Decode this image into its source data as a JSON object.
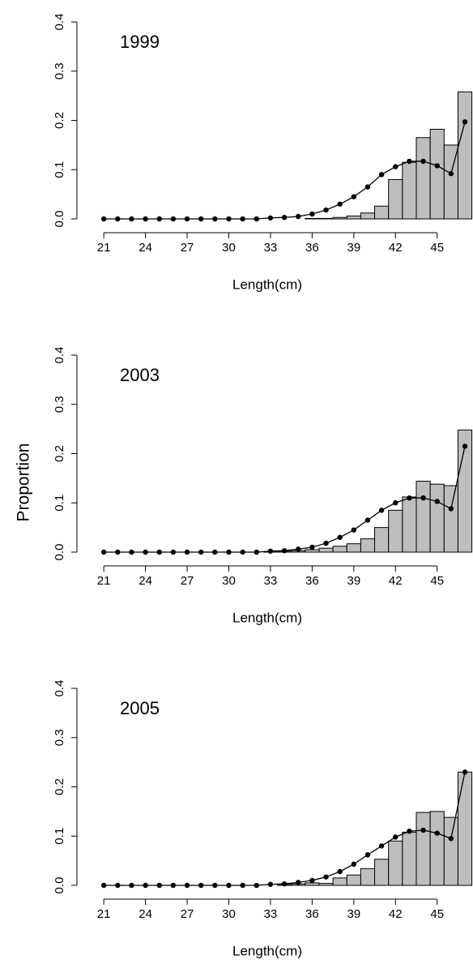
{
  "ylabel": "Proportion",
  "chart_data": [
    {
      "type": "combo",
      "title": "1999",
      "xlabel": "Length(cm)",
      "x": [
        21,
        22,
        23,
        24,
        25,
        26,
        27,
        28,
        29,
        30,
        31,
        32,
        33,
        34,
        35,
        36,
        37,
        38,
        39,
        40,
        41,
        42,
        43,
        44,
        45,
        46,
        47
      ],
      "series": [
        {
          "type": "bar",
          "color": "#bebebe",
          "values": [
            0,
            0,
            0,
            0,
            0,
            0,
            0,
            0,
            0,
            0,
            0,
            0,
            0,
            0,
            0,
            0.001,
            0.001,
            0.003,
            0.006,
            0.012,
            0.026,
            0.08,
            0.115,
            0.165,
            0.182,
            0.15,
            0.258
          ]
        },
        {
          "type": "line",
          "color": "#000000",
          "values": [
            0,
            0,
            0,
            0,
            0,
            0,
            0,
            0,
            0,
            0,
            0,
            0,
            0.002,
            0.003,
            0.005,
            0.01,
            0.018,
            0.03,
            0.045,
            0.065,
            0.09,
            0.106,
            0.117,
            0.117,
            0.108,
            0.092,
            0.197
          ]
        }
      ],
      "xlim": [
        20,
        47.5
      ],
      "xticks": [
        21,
        24,
        27,
        30,
        33,
        36,
        39,
        42,
        45
      ],
      "ylim": [
        0,
        0.4
      ],
      "yticks": [
        {
          "value": 0,
          "label": "0.0"
        },
        {
          "value": 0.1,
          "label": "0.1"
        },
        {
          "value": 0.2,
          "label": "0.2"
        },
        {
          "value": 0.3,
          "label": "0.3"
        },
        {
          "value": 0.4,
          "label": "0.4"
        }
      ]
    },
    {
      "type": "combo",
      "title": "2003",
      "xlabel": "Length(cm)",
      "x": [
        21,
        22,
        23,
        24,
        25,
        26,
        27,
        28,
        29,
        30,
        31,
        32,
        33,
        34,
        35,
        36,
        37,
        38,
        39,
        40,
        41,
        42,
        43,
        44,
        45,
        46,
        47
      ],
      "series": [
        {
          "type": "bar",
          "color": "#bebebe",
          "values": [
            0,
            0,
            0,
            0,
            0,
            0,
            0,
            0,
            0,
            0,
            0,
            0,
            0.001,
            0.002,
            0.003,
            0.005,
            0.008,
            0.012,
            0.017,
            0.027,
            0.05,
            0.085,
            0.112,
            0.144,
            0.138,
            0.135,
            0.248
          ]
        },
        {
          "type": "line",
          "color": "#000000",
          "values": [
            0,
            0,
            0,
            0,
            0,
            0,
            0,
            0,
            0,
            0,
            0,
            0,
            0.002,
            0.003,
            0.006,
            0.01,
            0.018,
            0.03,
            0.045,
            0.065,
            0.085,
            0.1,
            0.11,
            0.11,
            0.103,
            0.088,
            0.215
          ]
        }
      ],
      "xlim": [
        20,
        47.5
      ],
      "xticks": [
        21,
        24,
        27,
        30,
        33,
        36,
        39,
        42,
        45
      ],
      "ylim": [
        0,
        0.4
      ],
      "yticks": [
        {
          "value": 0,
          "label": "0.0"
        },
        {
          "value": 0.1,
          "label": "0.1"
        },
        {
          "value": 0.2,
          "label": "0.2"
        },
        {
          "value": 0.3,
          "label": "0.3"
        },
        {
          "value": 0.4,
          "label": "0.4"
        }
      ]
    },
    {
      "type": "combo",
      "title": "2005",
      "xlabel": "Length(cm)",
      "x": [
        21,
        22,
        23,
        24,
        25,
        26,
        27,
        28,
        29,
        30,
        31,
        32,
        33,
        34,
        35,
        36,
        37,
        38,
        39,
        40,
        41,
        42,
        43,
        44,
        45,
        46,
        47
      ],
      "series": [
        {
          "type": "bar",
          "color": "#bebebe",
          "values": [
            0,
            0,
            0,
            0,
            0,
            0,
            0,
            0,
            0,
            0,
            0,
            0,
            0,
            0.002,
            0.003,
            0.005,
            0.004,
            0.015,
            0.021,
            0.034,
            0.053,
            0.09,
            0.108,
            0.148,
            0.15,
            0.138,
            0.23
          ]
        },
        {
          "type": "line",
          "color": "#000000",
          "values": [
            0,
            0,
            0,
            0,
            0,
            0,
            0,
            0,
            0,
            0,
            0,
            0,
            0.002,
            0.003,
            0.006,
            0.01,
            0.017,
            0.028,
            0.043,
            0.062,
            0.08,
            0.098,
            0.11,
            0.112,
            0.106,
            0.095,
            0.23
          ]
        }
      ],
      "xlim": [
        20,
        47.5
      ],
      "xticks": [
        21,
        24,
        27,
        30,
        33,
        36,
        39,
        42,
        45
      ],
      "ylim": [
        0,
        0.4
      ],
      "yticks": [
        {
          "value": 0,
          "label": "0.0"
        },
        {
          "value": 0.1,
          "label": "0.1"
        },
        {
          "value": 0.2,
          "label": "0.2"
        },
        {
          "value": 0.3,
          "label": "0.3"
        },
        {
          "value": 0.4,
          "label": "0.4"
        }
      ]
    }
  ]
}
